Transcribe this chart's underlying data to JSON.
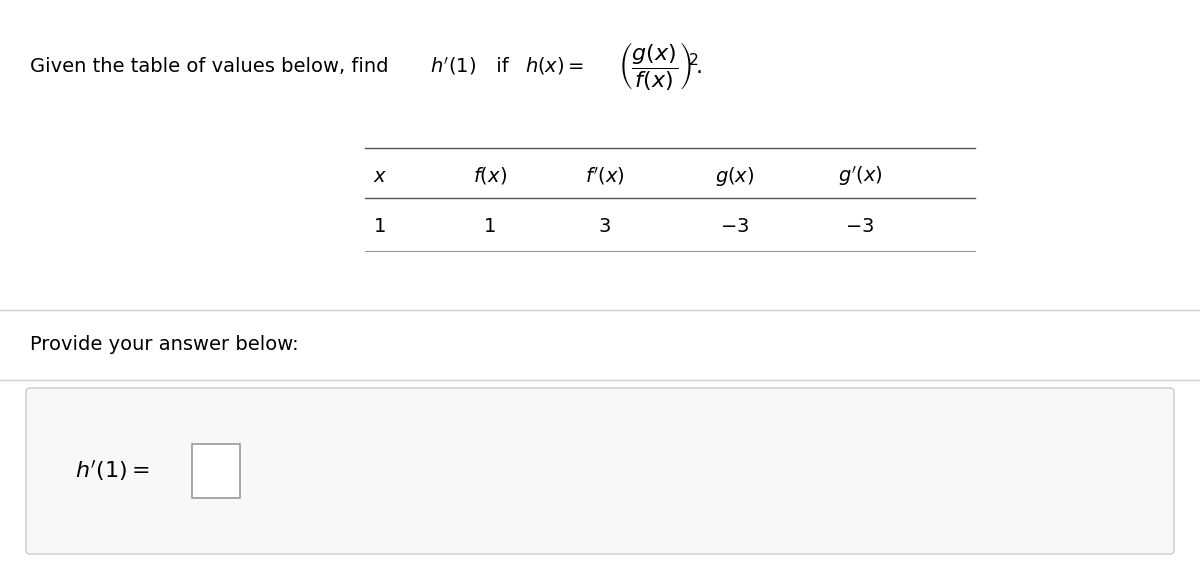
{
  "bg_color": "#ffffff",
  "text_color": "#000000",
  "light_gray": "#e0e0e0",
  "box_bg": "#f8f8f8",
  "box_edge": "#cccccc",
  "input_edge": "#999999",
  "fig_width": 12.0,
  "fig_height": 5.86,
  "provide_text": "Provide your answer below:",
  "table_headers_math": [
    "$x$",
    "$f(x)$",
    "$f'(x)$",
    "$g(x)$",
    "$g'(x)$"
  ],
  "table_row": [
    "1",
    "1",
    "3",
    "$-3$",
    "$-3$"
  ]
}
